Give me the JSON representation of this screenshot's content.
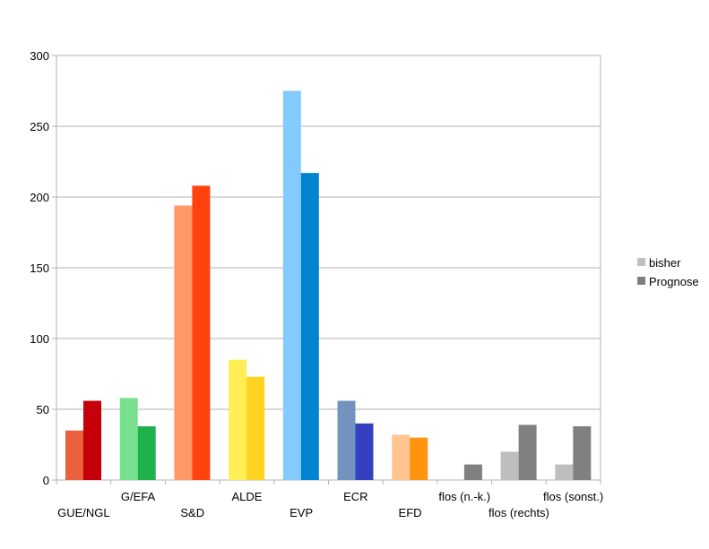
{
  "chart_data": {
    "type": "bar",
    "title": "",
    "xlabel": "",
    "ylabel": "",
    "ylim": [
      0,
      300
    ],
    "yticks": [
      0,
      50,
      100,
      150,
      200,
      250,
      300
    ],
    "grid": true,
    "legend_position": "right",
    "categories": [
      "GUE/NGL",
      "G/EFA",
      "S&D",
      "ALDE",
      "EVP",
      "ECR",
      "EFD",
      "flos (n.-k.)",
      "flos (rechts)",
      "flos (sonst.)"
    ],
    "series": [
      {
        "name": "bisher",
        "values": [
          35,
          58,
          194,
          85,
          275,
          56,
          32,
          0,
          20,
          11
        ],
        "legend_color": "#c0c0c0",
        "colors": [
          "#e8603c",
          "#77e08e",
          "#ff9966",
          "#ffee55",
          "#83caff",
          "#7293c0",
          "#ffc58f",
          "#bebebe",
          "#bebebe",
          "#bebebe"
        ]
      },
      {
        "name": "Prognose",
        "values": [
          56,
          38,
          208,
          73,
          217,
          40,
          30,
          11,
          39,
          38
        ],
        "legend_color": "#808080",
        "colors": [
          "#c5000b",
          "#1fb14c",
          "#ff420e",
          "#ffd320",
          "#0084d1",
          "#3540c0",
          "#ff950e",
          "#808080",
          "#808080",
          "#808080"
        ]
      }
    ]
  }
}
